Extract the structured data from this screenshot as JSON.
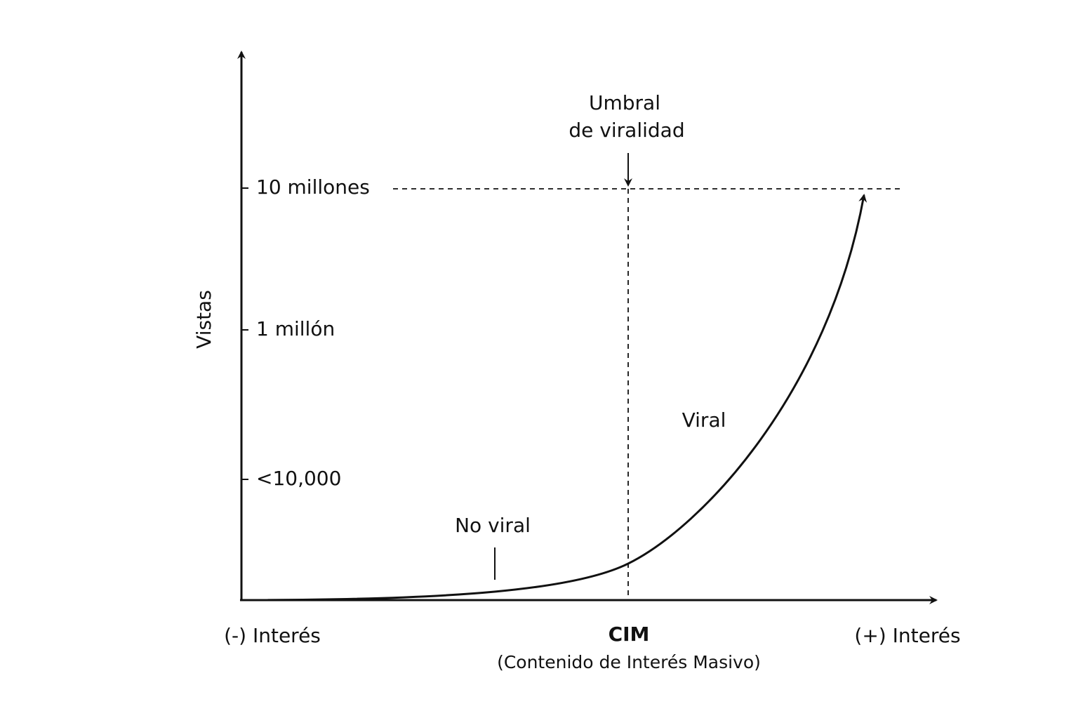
{
  "y_axis": {
    "title": "Vistas",
    "levels": [
      "10 millones",
      "1 millón",
      "<10,000"
    ]
  },
  "x_axis": {
    "left": "(-) Interés",
    "center": "CIM",
    "center_note": "(Contenido de Interés Masivo)",
    "right": "(+) Interés"
  },
  "threshold": {
    "label_line1": "Umbral",
    "label_line2": "de viralidad"
  },
  "regions": {
    "low": "No viral",
    "high": "Viral"
  }
}
